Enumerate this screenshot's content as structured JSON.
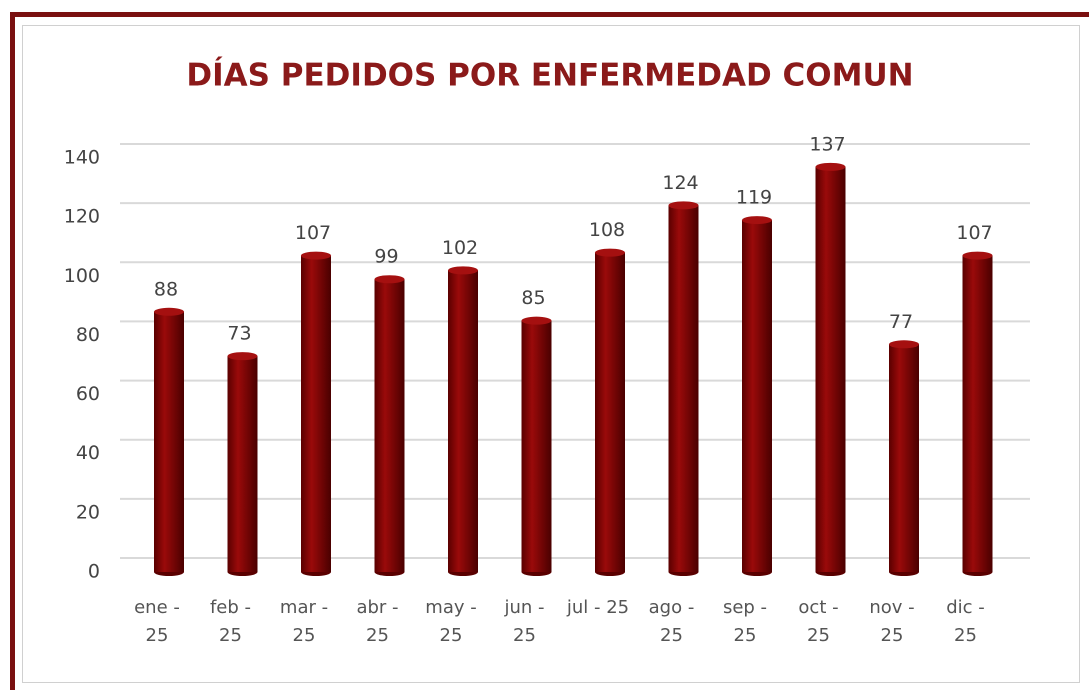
{
  "chart_data": {
    "type": "bar",
    "title": "DÍAS PEDIDOS POR ENFERMEDAD COMUN",
    "categories": [
      "ene - 25",
      "feb - 25",
      "mar - 25",
      "abr - 25",
      "may - 25",
      "jun - 25",
      "jul - 25",
      "ago - 25",
      "sep - 25",
      "oct - 25",
      "nov - 25",
      "dic - 25"
    ],
    "values": [
      88,
      73,
      107,
      99,
      102,
      85,
      108,
      124,
      119,
      137,
      77,
      107
    ],
    "color": "#7a0000",
    "ylim": [
      0,
      140
    ],
    "yticks": [
      0,
      20,
      40,
      60,
      80,
      100,
      120,
      140
    ],
    "grid": true
  }
}
